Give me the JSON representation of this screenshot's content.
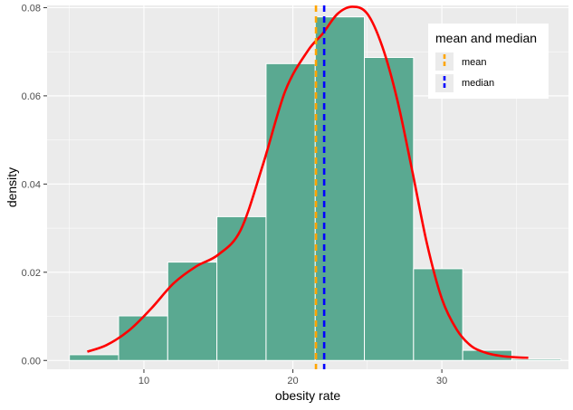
{
  "chart_data": {
    "type": "bar",
    "xlabel": "obesity rate",
    "ylabel": "density",
    "xlim": [
      3.5,
      38.5
    ],
    "ylim": [
      -0.002,
      0.0805
    ],
    "x_ticks": [
      10,
      20,
      30
    ],
    "y_ticks": [
      0.0,
      0.02,
      0.04,
      0.06,
      0.08
    ],
    "y_tick_labels": [
      "0.00",
      "0.02",
      "0.04",
      "0.06",
      "0.08"
    ],
    "grid": true,
    "histogram": {
      "bin_edges": [
        5.0,
        8.3,
        11.6,
        14.9,
        18.2,
        21.5,
        24.8,
        28.1,
        31.4,
        34.7,
        38.0
      ],
      "values": [
        0.0013,
        0.0101,
        0.0223,
        0.0326,
        0.0673,
        0.0779,
        0.0687,
        0.0208,
        0.0023,
        0.0003
      ],
      "fill": "#5aa991",
      "edge": "#ffffff"
    },
    "density_curve": {
      "color": "#ff0000",
      "x": [
        6.2,
        7.5,
        9,
        10.5,
        12,
        13.5,
        15,
        16.5,
        18,
        19.5,
        21,
        22,
        23,
        24,
        25,
        26,
        27,
        28,
        29,
        30,
        31,
        32,
        33,
        34,
        35,
        35.8
      ],
      "y": [
        0.002,
        0.0035,
        0.0068,
        0.0118,
        0.0175,
        0.0213,
        0.024,
        0.0296,
        0.0445,
        0.0612,
        0.0702,
        0.0741,
        0.0786,
        0.0802,
        0.0786,
        0.0712,
        0.0592,
        0.0432,
        0.0265,
        0.014,
        0.007,
        0.0032,
        0.0017,
        0.001,
        0.0007,
        0.0006
      ]
    },
    "vlines": [
      {
        "name": "mean",
        "x": 21.55,
        "color": "#ffa500",
        "dash": "dashed"
      },
      {
        "name": "median",
        "x": 22.1,
        "color": "#0000ff",
        "dash": "dashed"
      }
    ],
    "legend": {
      "title": "mean and median",
      "placement": "top-right",
      "entries": [
        "mean",
        "median"
      ]
    }
  }
}
